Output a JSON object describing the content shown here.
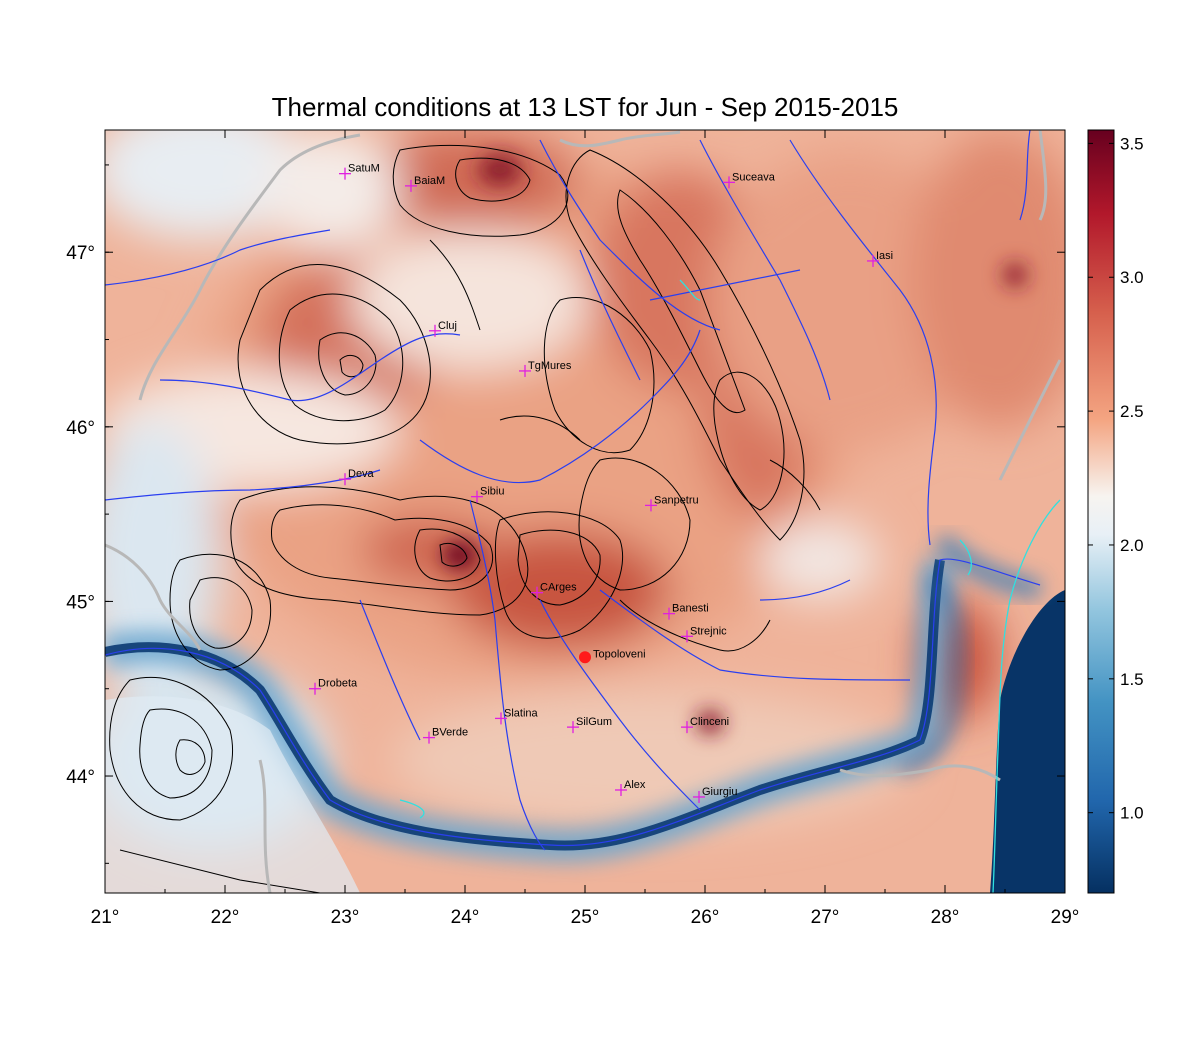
{
  "title": "Thermal conditions at 13 LST for Jun - Sep  2015-2015",
  "map": {
    "lon_range": [
      21,
      29
    ],
    "lat_range": [
      43.33,
      47.7
    ],
    "lon_ticks": [
      21,
      22,
      23,
      24,
      25,
      26,
      27,
      28,
      29
    ],
    "lon_tick_labels": [
      "21°",
      "22°",
      "23°",
      "24°",
      "25°",
      "26°",
      "27°",
      "28°",
      "29°"
    ],
    "lat_ticks": [
      44,
      45,
      46,
      47
    ],
    "lat_tick_labels": [
      "44°",
      "45°",
      "46°",
      "47°"
    ],
    "colors": {
      "water": "#1f3fe0",
      "border": "#b8b8b8",
      "contour": "#000000",
      "marker": "#e020e0",
      "highlight": "#ff1a1a",
      "coast": "#30e0e0"
    }
  },
  "colorbar": {
    "min": 0.7,
    "max": 3.55,
    "ticks": [
      1.0,
      1.5,
      2.0,
      2.5,
      3.0,
      3.5
    ],
    "tick_labels": [
      "1.0",
      "1.5",
      "2.0",
      "2.5",
      "3.0",
      "3.5"
    ],
    "colormap": "RdBu_r"
  },
  "cities": [
    {
      "name": "SatuM",
      "lon": 23.0,
      "lat": 47.45
    },
    {
      "name": "BaiaM",
      "lon": 23.55,
      "lat": 47.38
    },
    {
      "name": "Suceava",
      "lon": 26.2,
      "lat": 47.4
    },
    {
      "name": "Iasi",
      "lon": 27.4,
      "lat": 46.95
    },
    {
      "name": "Cluj",
      "lon": 23.75,
      "lat": 46.55
    },
    {
      "name": "TgMures",
      "lon": 24.5,
      "lat": 46.32
    },
    {
      "name": "Deva",
      "lon": 23.0,
      "lat": 45.7
    },
    {
      "name": "Sibiu",
      "lon": 24.1,
      "lat": 45.6
    },
    {
      "name": "Sanpetru",
      "lon": 25.55,
      "lat": 45.55
    },
    {
      "name": "CArges",
      "lon": 24.6,
      "lat": 45.05
    },
    {
      "name": "Banesti",
      "lon": 25.7,
      "lat": 44.93
    },
    {
      "name": "Strejnic",
      "lon": 25.85,
      "lat": 44.8
    },
    {
      "name": "Drobeta",
      "lon": 22.75,
      "lat": 44.5
    },
    {
      "name": "Slatina",
      "lon": 24.3,
      "lat": 44.33
    },
    {
      "name": "SilGum",
      "lon": 24.9,
      "lat": 44.28
    },
    {
      "name": "Clinceni",
      "lon": 25.85,
      "lat": 44.28
    },
    {
      "name": "BVerde",
      "lon": 23.7,
      "lat": 44.22
    },
    {
      "name": "Alex",
      "lon": 25.3,
      "lat": 43.92
    },
    {
      "name": "Giurgiu",
      "lon": 25.95,
      "lat": 43.88
    }
  ],
  "highlight": {
    "name": "Topoloveni",
    "lon": 25.0,
    "lat": 44.68
  }
}
